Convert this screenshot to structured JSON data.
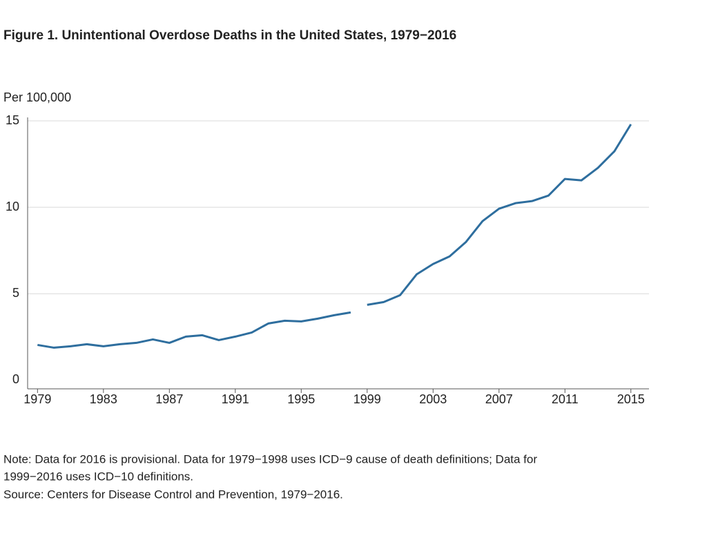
{
  "chart_data": {
    "type": "line",
    "title": "Figure 1. Unintentional Overdose Deaths in the United States, 1979−2016",
    "y_label": "Per 100,000",
    "series": [
      {
        "color": "#2e6e9e",
        "x": [
          1979,
          1980,
          1981,
          1982,
          1983,
          1984,
          1985,
          1986,
          1987,
          1988,
          1989,
          1990,
          1991,
          1992,
          1993,
          1994,
          1995,
          1996,
          1997,
          1998
        ],
        "values": [
          2.04,
          1.88,
          1.96,
          2.08,
          1.96,
          2.08,
          2.16,
          2.36,
          2.16,
          2.52,
          2.6,
          2.32,
          2.52,
          2.76,
          3.28,
          3.44,
          3.4,
          3.56,
          3.76,
          3.92
        ]
      },
      {
        "color": "#2e6e9e",
        "x": [
          1999,
          2000,
          2001,
          2002,
          2003,
          2004,
          2005,
          2006,
          2007,
          2008,
          2009,
          2010,
          2011,
          2012,
          2013,
          2014,
          2015
        ],
        "values": [
          4.36,
          4.52,
          4.92,
          6.12,
          6.72,
          7.16,
          8.0,
          9.2,
          9.92,
          10.24,
          10.36,
          10.68,
          11.64,
          11.56,
          12.28,
          13.24,
          14.8
        ]
      }
    ],
    "xlim": [
      1978.4,
      2016.1
    ],
    "xticks": [
      1979,
      1983,
      1987,
      1991,
      1995,
      1999,
      2003,
      2007,
      2011,
      2015
    ],
    "ylim": [
      -0.5,
      15.2
    ],
    "yticks": [
      0,
      5,
      10,
      15
    ],
    "grid": true,
    "notes": [
      "Note: Data for 2016 is provisional. Data for 1979−1998 uses ICD−9 cause of death definitions; Data for",
      "1999−2016 uses ICD−10 definitions.",
      "Source: Centers for Disease Control and Prevention, 1979−2016."
    ]
  }
}
